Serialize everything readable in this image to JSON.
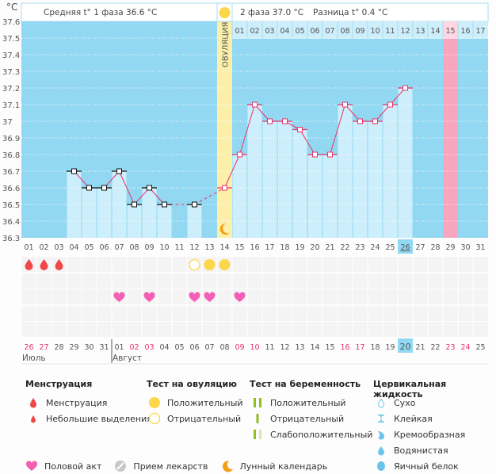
{
  "header": {
    "unit": "°C",
    "phase1_label": "Средняя t° 1 фаза 36.6 °C",
    "phase2_label": "2 фаза 37.0 °C",
    "diff_label": "Разница t° 0.4 °C",
    "ovulation_label": "ОВУЛЯЦИЯ"
  },
  "chart_data": {
    "type": "line",
    "title": "",
    "ylabel": "°C",
    "ylim": [
      36.3,
      37.6
    ],
    "y_ticks": [
      "37.6",
      "37.5",
      "37.4",
      "37.3",
      "37.2",
      "37.1",
      "37",
      "36.9",
      "36.8",
      "36.7",
      "36.6",
      "36.5",
      "36.4",
      "36.3"
    ],
    "cycle_days": [
      "01",
      "02",
      "03",
      "04",
      "05",
      "06",
      "07",
      "08",
      "09",
      "10",
      "11",
      "12",
      "13",
      "14",
      "15",
      "16",
      "17",
      "18",
      "19",
      "20",
      "21",
      "22",
      "23",
      "24",
      "25",
      "26",
      "27",
      "28",
      "29",
      "30",
      "31"
    ],
    "phase2_days": [
      "01",
      "02",
      "03",
      "04",
      "05",
      "06",
      "07",
      "08",
      "09",
      "10",
      "11",
      "12",
      "13",
      "14",
      "15",
      "16",
      "17"
    ],
    "temperatures": [
      null,
      null,
      null,
      36.7,
      36.6,
      36.6,
      36.7,
      36.5,
      36.6,
      36.5,
      null,
      36.5,
      null,
      36.6,
      36.8,
      37.1,
      37.0,
      37.0,
      36.95,
      36.8,
      36.8,
      37.1,
      37.0,
      37.0,
      37.1,
      37.2,
      null,
      null,
      null,
      null,
      null
    ],
    "ovulation_day": 14,
    "today_cycle_day": 26,
    "expected_period_day": 29,
    "menstruation_days": [
      1,
      2,
      3
    ],
    "ovulation_test_negative_days": [
      12
    ],
    "ovulation_test_positive_days": [
      13,
      14
    ],
    "intercourse_days": [
      7,
      9,
      12,
      13,
      15
    ],
    "moon_days": [
      14
    ],
    "calendar_dates": [
      "26",
      "27",
      "28",
      "29",
      "30",
      "31",
      "01",
      "02",
      "03",
      "04",
      "05",
      "06",
      "07",
      "08",
      "09",
      "10",
      "11",
      "12",
      "13",
      "14",
      "15",
      "16",
      "17",
      "18",
      "19",
      "20",
      "21",
      "22",
      "23",
      "24",
      "25"
    ],
    "weekend_indexes": [
      0,
      1,
      7,
      8,
      14,
      15,
      21,
      22,
      28,
      29
    ],
    "today_calendar_index": 25,
    "months": [
      {
        "label": "Июль",
        "start_index": 0
      },
      {
        "label": "Август",
        "start_index": 6
      }
    ]
  },
  "colors": {
    "chart_bg": "#92d8f2",
    "bar_fill": "#cdeefb",
    "line": "#e8336b",
    "ovulation": "#fcefaa",
    "period": "#f7a6c0",
    "drop": "#f04848",
    "heart": "#f25fb5",
    "sun": "#fcd74a",
    "moon": "#f5a014",
    "weekend": "#e8336b",
    "today_highlight": "#92d8f2"
  },
  "legend": {
    "menstruation": {
      "title": "Менструация",
      "items": [
        "Менструация",
        "Небольшие выделения"
      ]
    },
    "ovulation_test": {
      "title": "Тест на овуляцию",
      "items": [
        "Положительный",
        "Отрицательный"
      ]
    },
    "pregnancy_test": {
      "title": "Тест на беременность",
      "items": [
        "Положительный",
        "Отрицательный",
        "Слабоположительный"
      ]
    },
    "cervical_fluid": {
      "title": "Цервикальная жидкость",
      "items": [
        "Сухо",
        "Клейкая",
        "Кремообразная",
        "Водянистая",
        "Яичный белок"
      ]
    },
    "other": [
      "Половой акт",
      "Прием лекарств",
      "Лунный календарь"
    ]
  }
}
